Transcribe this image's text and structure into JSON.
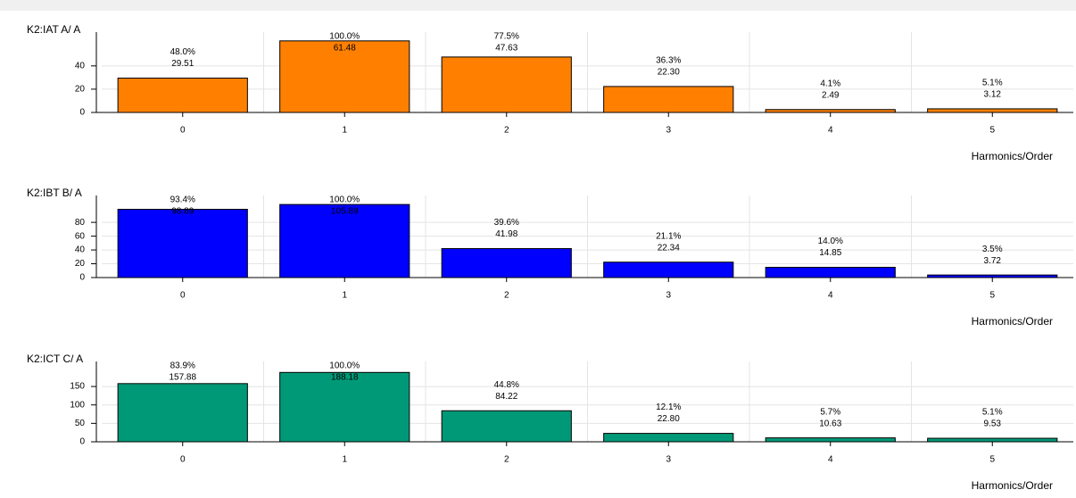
{
  "chart_data": [
    {
      "type": "bar",
      "ylabel": "K2:IAT A/ A",
      "xlabel": "Harmonics/Order",
      "color": "#ff8000",
      "categories": [
        "0",
        "1",
        "2",
        "3",
        "4",
        "5"
      ],
      "values": [
        29.51,
        61.48,
        47.63,
        22.3,
        2.49,
        3.12
      ],
      "value_labels": [
        "29.51",
        "61.48",
        "47.63",
        "22.30",
        "2.49",
        "3.12"
      ],
      "percent_labels": [
        "48.0%",
        "100.0%",
        "77.5%",
        "36.3%",
        "4.1%",
        "5.1%"
      ],
      "ylim": [
        0,
        69
      ],
      "yticks": [
        0,
        20,
        40
      ],
      "grid": true
    },
    {
      "type": "bar",
      "ylabel": "K2:IBT B/ A",
      "xlabel": "Harmonics/Order",
      "color": "#0000ff",
      "categories": [
        "0",
        "1",
        "2",
        "3",
        "4",
        "5"
      ],
      "values": [
        98.89,
        105.89,
        41.98,
        22.34,
        14.85,
        3.72
      ],
      "value_labels": [
        "98.89",
        "105.89",
        "41.98",
        "22.34",
        "14.85",
        "3.72"
      ],
      "percent_labels": [
        "93.4%",
        "100.0%",
        "39.6%",
        "21.1%",
        "14.0%",
        "3.5%"
      ],
      "ylim": [
        0,
        119
      ],
      "yticks": [
        0,
        20,
        40,
        60,
        80
      ],
      "grid": true
    },
    {
      "type": "bar",
      "ylabel": "K2:ICT C/ A",
      "xlabel": "Harmonics/Order",
      "color": "#009977",
      "categories": [
        "0",
        "1",
        "2",
        "3",
        "4",
        "5"
      ],
      "values": [
        157.88,
        188.18,
        84.22,
        22.8,
        10.63,
        9.53
      ],
      "value_labels": [
        "157.88",
        "188.18",
        "84.22",
        "22.80",
        "10.63",
        "9.53"
      ],
      "percent_labels": [
        "83.9%",
        "100.0%",
        "44.8%",
        "12.1%",
        "5.7%",
        "5.1%"
      ],
      "ylim": [
        0,
        218
      ],
      "yticks": [
        0,
        50,
        100,
        150
      ],
      "grid": true
    }
  ]
}
